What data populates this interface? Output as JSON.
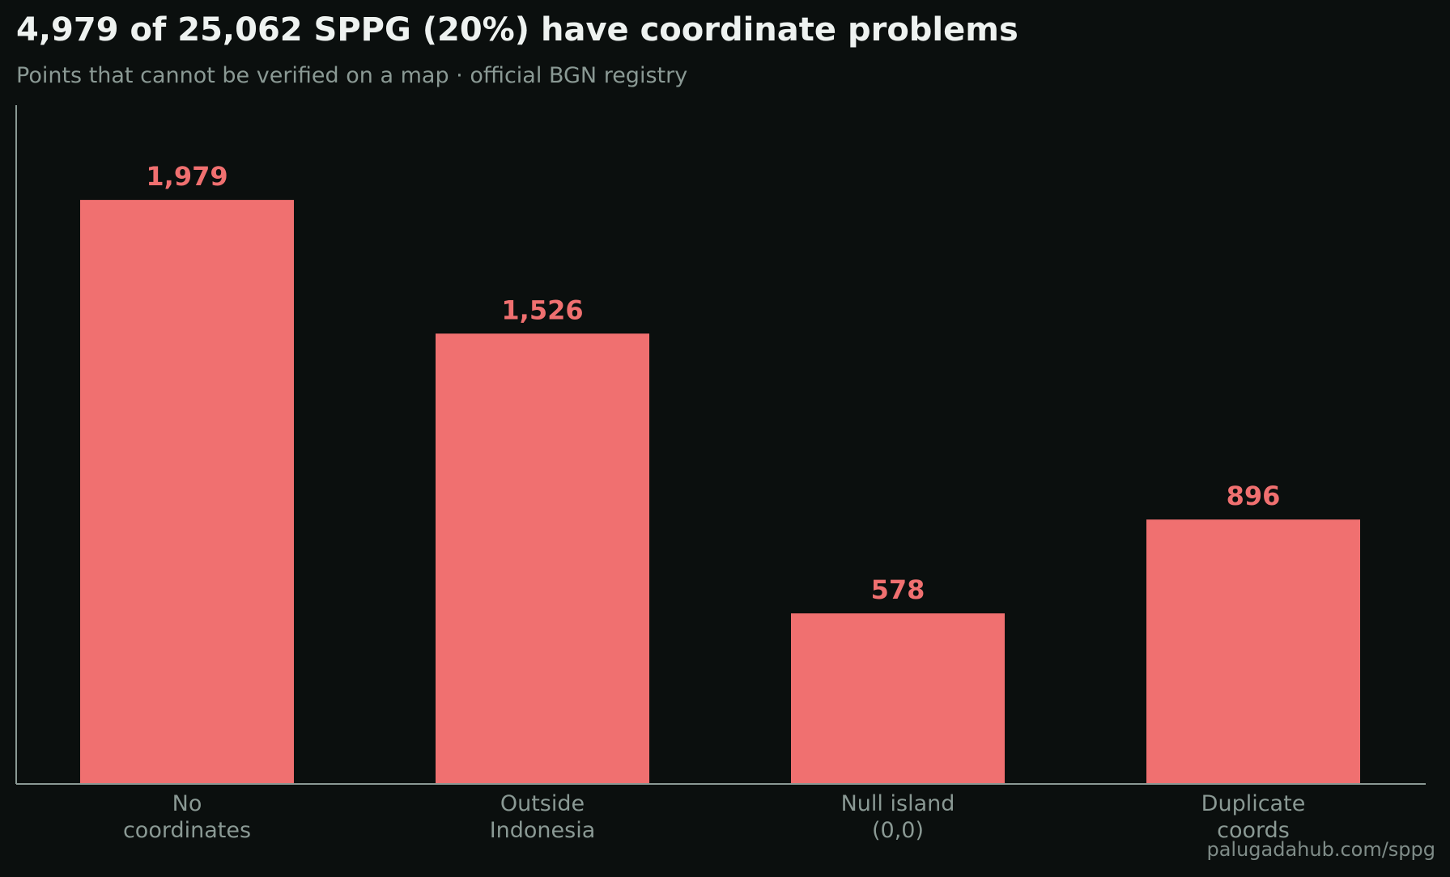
{
  "chart_data": {
    "type": "bar",
    "title": "4,979 of 25,062 SPPG (20%) have coordinate problems",
    "subtitle": "Points that cannot be verified on a map · official BGN registry",
    "categories": [
      [
        "No",
        "coordinates"
      ],
      [
        "Outside",
        "Indonesia"
      ],
      [
        "Null island",
        "(0,0)"
      ],
      [
        "Duplicate",
        "coords"
      ]
    ],
    "values": [
      1979,
      1526,
      578,
      896
    ],
    "value_labels": [
      "1,979",
      "1,526",
      "578",
      "896"
    ],
    "ylim": [
      0,
      2300
    ],
    "grid": false,
    "colors": {
      "background": "#0b0f0e",
      "bar": "#f07070",
      "value_label": "#f07070",
      "axis": "#8a9994",
      "category_label": "#8a9994"
    }
  },
  "footer": {
    "source": "palugadahub.com/sppg"
  }
}
